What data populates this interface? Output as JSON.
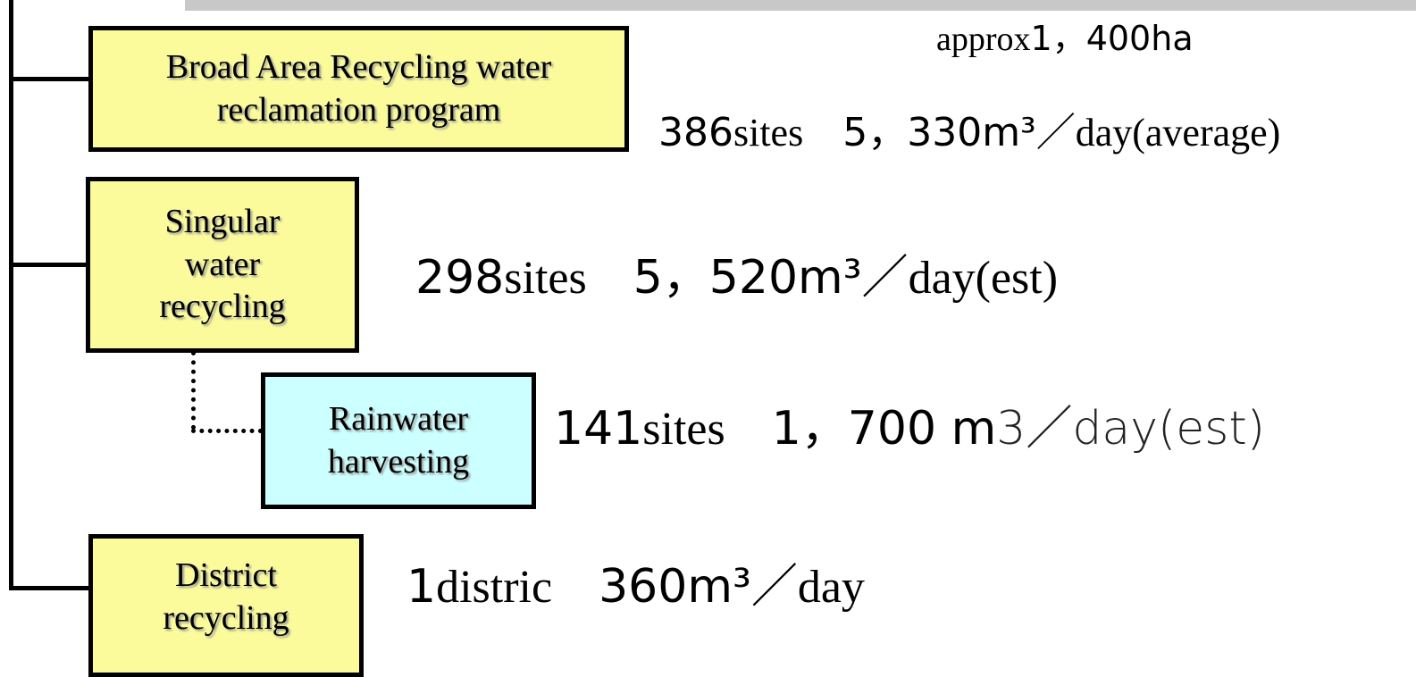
{
  "area": [
    "approx",
    "1，400ha"
  ],
  "boxes": [
    {
      "lines": [
        "Broad Area Recycling water",
        "reclamation program"
      ],
      "stat": [
        "386",
        "sites",
        "　5，330m³／",
        "day(average)"
      ]
    },
    {
      "lines": [
        "Singular",
        "water",
        "recycling"
      ],
      "stat": [
        "298",
        "sites",
        "　5，520m³／",
        "day(est)"
      ]
    },
    {
      "lines": [
        "Rainwater",
        "harvesting"
      ],
      "stat": [
        "141",
        "sites",
        "　1，700 m",
        "3／day(est)"
      ]
    },
    {
      "lines": [
        "District",
        "recycling"
      ],
      "stat": [
        "1",
        "distric",
        "　360m³／",
        "day"
      ]
    }
  ]
}
